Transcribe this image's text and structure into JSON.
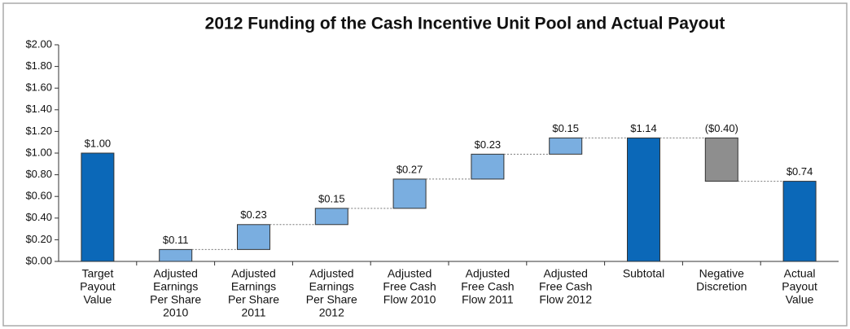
{
  "chart_data": {
    "type": "waterfall",
    "title": "2012 Funding of the Cash Incentive Unit Pool and Actual Payout",
    "categories": [
      [
        "Target",
        "Payout",
        "Value"
      ],
      [
        "Adjusted",
        "Earnings",
        "Per Share",
        "2010"
      ],
      [
        "Adjusted",
        "Earnings",
        "Per Share",
        "2011"
      ],
      [
        "Adjusted",
        "Earnings",
        "Per Share",
        "2012"
      ],
      [
        "Adjusted",
        "Free Cash",
        "Flow 2010"
      ],
      [
        "Adjusted",
        "Free Cash",
        "Flow 2011"
      ],
      [
        "Adjusted",
        "Free Cash",
        "Flow 2012"
      ],
      [
        "Subtotal"
      ],
      [
        "Negative",
        "Discretion"
      ],
      [
        "Actual",
        "Payout",
        "Value"
      ]
    ],
    "values": [
      1.0,
      0.11,
      0.23,
      0.15,
      0.27,
      0.23,
      0.15,
      1.14,
      -0.4,
      0.74
    ],
    "value_labels": [
      "$1.00",
      "$0.11",
      "$0.23",
      "$0.15",
      "$0.27",
      "$0.23",
      "$0.15",
      "$1.14",
      "($0.40)",
      "$0.74"
    ],
    "measure": [
      "reference",
      "relative",
      "relative",
      "relative",
      "relative",
      "relative",
      "relative",
      "total",
      "relative",
      "total"
    ],
    "colors": [
      "#0b68b8",
      "#7aaee0",
      "#7aaee0",
      "#7aaee0",
      "#7aaee0",
      "#7aaee0",
      "#7aaee0",
      "#0b68b8",
      "#8e8e8e",
      "#0b68b8"
    ],
    "ylim": [
      0,
      2
    ],
    "yticks": [
      {
        "value": 0,
        "label": "$0.00"
      },
      {
        "value": 0.2,
        "label": "$0.20"
      },
      {
        "value": 0.4,
        "label": "$0.40"
      },
      {
        "value": 0.6,
        "label": "$0.60"
      },
      {
        "value": 0.8,
        "label": "$0.80"
      },
      {
        "value": 1.0,
        "label": "$1.00"
      },
      {
        "value": 1.2,
        "label": "$1.20"
      },
      {
        "value": 1.4,
        "label": "$1.40"
      },
      {
        "value": 1.6,
        "label": "$1.60"
      },
      {
        "value": 1.8,
        "label": "$1.80"
      },
      {
        "value": 2.0,
        "label": "$2.00"
      }
    ],
    "grid": false
  }
}
